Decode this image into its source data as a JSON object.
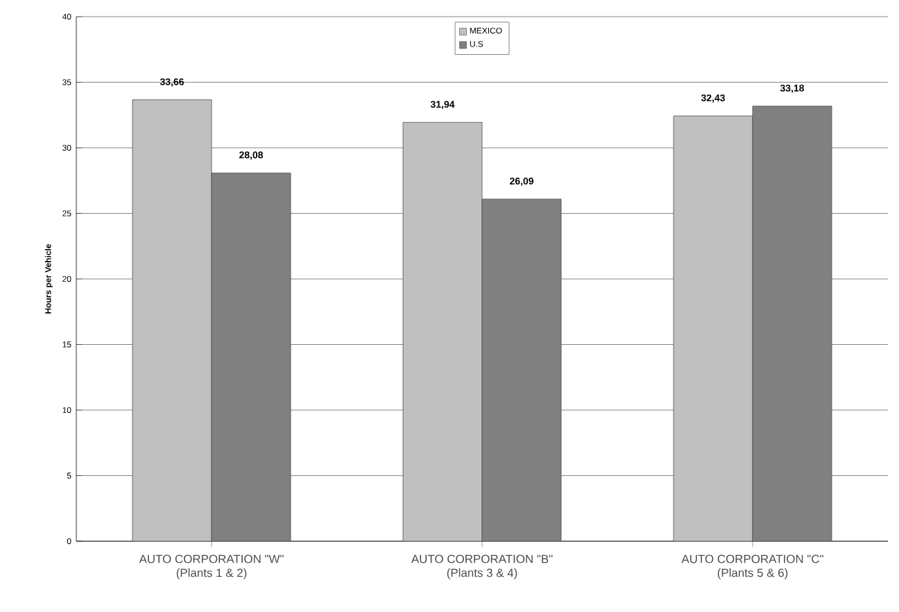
{
  "chart_data": {
    "type": "bar",
    "ylabel": "Hours per Vehicle",
    "categories": [
      "AUTO CORPORATION \"W\"\n(Plants 1 & 2)",
      "AUTO CORPORATION \"B\"\n(Plants 3 & 4)",
      "AUTO CORPORATION \"C\"\n(Plants 5 & 6)"
    ],
    "series": [
      {
        "name": "MEXICO",
        "color": "#c0c0c0",
        "values": [
          33.66,
          31.94,
          32.43
        ],
        "value_labels": [
          "33,66",
          "31,94",
          "32,43"
        ]
      },
      {
        "name": "U.S",
        "color": "#808080",
        "values": [
          28.08,
          26.09,
          33.18
        ],
        "value_labels": [
          "28,08",
          "26,09",
          "33,18"
        ]
      }
    ],
    "ylim": [
      0,
      40
    ],
    "yticks": [
      0,
      5,
      10,
      15,
      20,
      25,
      30,
      35,
      40
    ],
    "grid": "y",
    "legend": "top"
  }
}
